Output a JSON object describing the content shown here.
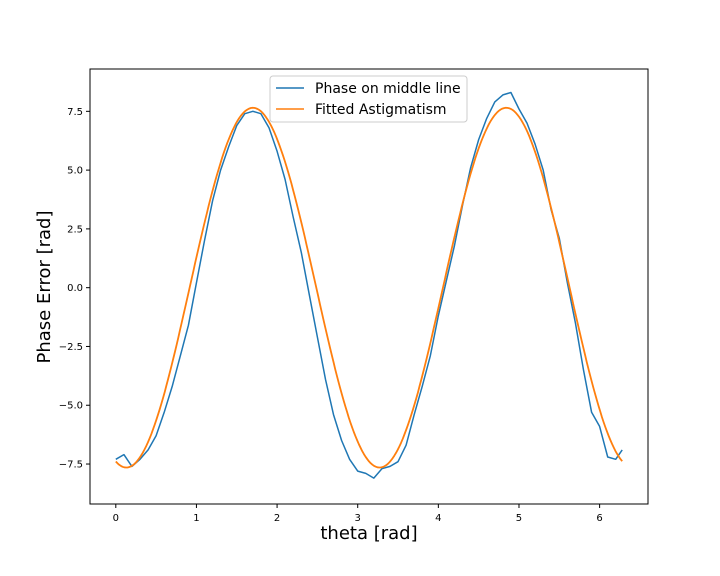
{
  "chart_data": {
    "type": "line",
    "title": "",
    "xlabel": "theta [rad]",
    "ylabel": "Phase Error [rad]",
    "xlim": [
      -0.32,
      6.6
    ],
    "ylim": [
      -9.2,
      9.3
    ],
    "x_ticks": [
      0,
      1,
      2,
      3,
      4,
      5,
      6
    ],
    "x_tick_labels": [
      "0",
      "1",
      "2",
      "3",
      "4",
      "5",
      "6"
    ],
    "y_ticks": [
      -7.5,
      -5.0,
      -2.5,
      0.0,
      2.5,
      5.0,
      7.5
    ],
    "y_tick_labels": [
      "−7.5",
      "−5.0",
      "−2.5",
      "0.0",
      "2.5",
      "5.0",
      "7.5"
    ],
    "grid": false,
    "legend_position": "top-center",
    "series": [
      {
        "name": "Phase on middle line",
        "color": "#1f77b4",
        "x": [
          0.0,
          0.1,
          0.2,
          0.3,
          0.4,
          0.5,
          0.6,
          0.7,
          0.8,
          0.9,
          1.0,
          1.1,
          1.2,
          1.3,
          1.4,
          1.5,
          1.6,
          1.7,
          1.8,
          1.9,
          2.0,
          2.1,
          2.2,
          2.3,
          2.4,
          2.5,
          2.6,
          2.7,
          2.8,
          2.9,
          3.0,
          3.1,
          3.2,
          3.3,
          3.4,
          3.5,
          3.6,
          3.7,
          3.8,
          3.9,
          4.0,
          4.1,
          4.2,
          4.3,
          4.4,
          4.5,
          4.6,
          4.7,
          4.8,
          4.9,
          5.0,
          5.1,
          5.2,
          5.3,
          5.4,
          5.5,
          5.6,
          5.7,
          5.8,
          5.9,
          6.0,
          6.1,
          6.2,
          6.28
        ],
        "y": [
          -7.3,
          -7.1,
          -7.6,
          -7.3,
          -6.9,
          -6.3,
          -5.3,
          -4.2,
          -2.9,
          -1.6,
          0.2,
          2.0,
          3.7,
          5.0,
          6.0,
          6.9,
          7.4,
          7.5,
          7.4,
          6.8,
          5.8,
          4.6,
          3.0,
          1.5,
          -0.3,
          -2.1,
          -3.9,
          -5.4,
          -6.5,
          -7.3,
          -7.8,
          -7.9,
          -8.1,
          -7.7,
          -7.6,
          -7.4,
          -6.7,
          -5.4,
          -4.2,
          -2.9,
          -1.2,
          0.3,
          1.8,
          3.5,
          5.1,
          6.3,
          7.2,
          7.9,
          8.2,
          8.3,
          7.6,
          7.0,
          6.1,
          5.0,
          3.3,
          2.1,
          0.2,
          -1.5,
          -3.5,
          -5.3,
          -5.9,
          -7.2,
          -7.3,
          -6.9
        ]
      },
      {
        "name": "Fitted Astigmatism",
        "color": "#ff7f0e",
        "amplitude": 7.65,
        "note_form": "y = -amplitude * cos(2 * (theta - phase_shift))",
        "phase_shift": 0.13,
        "x_range": [
          0.0,
          6.28
        ]
      }
    ]
  }
}
